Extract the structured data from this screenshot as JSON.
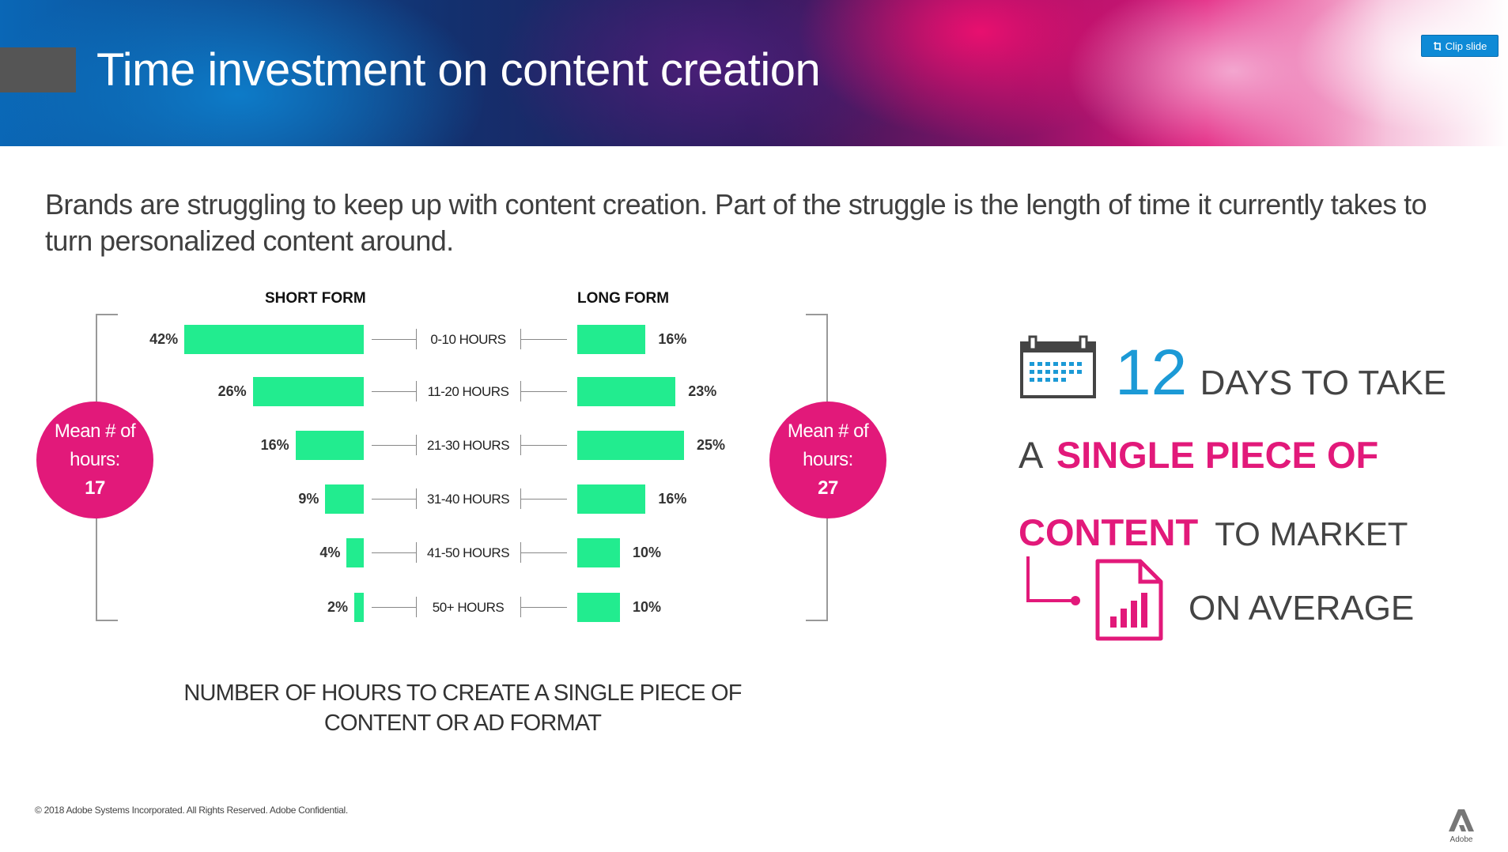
{
  "slide": {
    "title": "Time investment on content creation",
    "clip_button": "Clip slide",
    "intro": "Brands are struggling to keep up with content creation. Part of the struggle is the length of time it currently takes to turn personalized content around.",
    "footer": "© 2018 Adobe Systems Incorporated. All Rights Reserved. Adobe Confidential.",
    "logo_label": "Adobe"
  },
  "chart_data": {
    "type": "bar",
    "categories": [
      "0-10 HOURS",
      "11-20 HOURS",
      "21-30 HOURS",
      "31-40 HOURS",
      "41-50 HOURS",
      "50+ HOURS"
    ],
    "series": [
      {
        "name": "SHORT FORM",
        "values": [
          42,
          26,
          16,
          9,
          4,
          2
        ],
        "labels": [
          "42%",
          "26%",
          "16%",
          "9%",
          "4%",
          "2%"
        ]
      },
      {
        "name": "LONG FORM",
        "values": [
          16,
          23,
          25,
          16,
          10,
          10
        ],
        "labels": [
          "16%",
          "23%",
          "25%",
          "16%",
          "10%",
          "10%"
        ]
      }
    ],
    "caption": "NUMBER OF HOURS TO CREATE A SINGLE PIECE OF CONTENT OR AD FORMAT",
    "bar_color": "#22ec8f",
    "means": {
      "short": {
        "label": "Mean # of hours:",
        "value": "17"
      },
      "long": {
        "label": "Mean # of hours:",
        "value": "27"
      }
    }
  },
  "stat": {
    "number": "12",
    "line1": "DAYS TO TAKE",
    "line2_prefix": "A",
    "line2_bold": "SINGLE PIECE OF",
    "line3_bold": "CONTENT",
    "line3_rest": "TO MARKET",
    "line4": "ON AVERAGE"
  },
  "colors": {
    "accent_pink": "#e2197a",
    "accent_blue": "#1c9ad6",
    "bar_green": "#22ec8f"
  },
  "icons": [
    "calendar-icon",
    "document-chart-icon",
    "arrow-connector-icon",
    "clip-icon",
    "adobe-logo-icon"
  ]
}
